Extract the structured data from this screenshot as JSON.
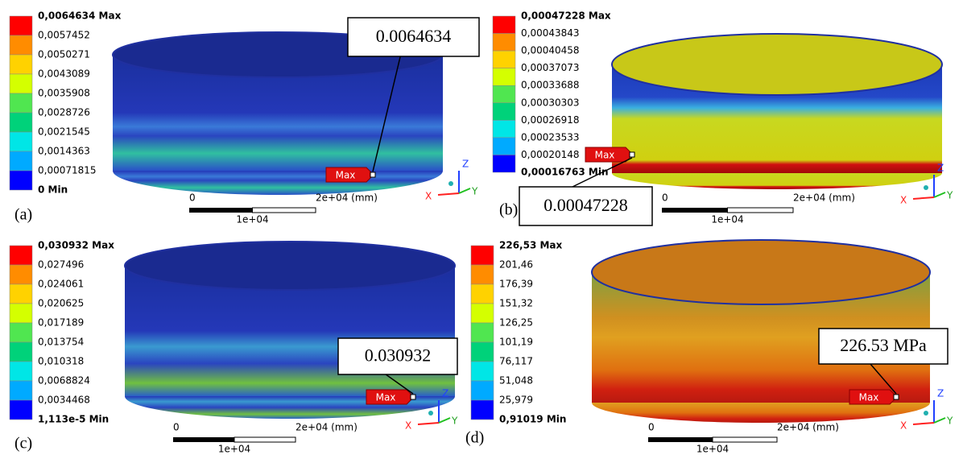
{
  "panels": [
    {
      "label": "(a)",
      "callout": "0.0064634",
      "legend": [
        "0,0064634 Max",
        "0,0057452",
        "0,0050271",
        "0,0043089",
        "0,0035908",
        "0,0028726",
        "0,0021545",
        "0,0014363",
        "0,00071815",
        "0 Min"
      ]
    },
    {
      "label": "(b)",
      "callout": "0.00047228",
      "legend": [
        "0,00047228 Max",
        "0,00043843",
        "0,00040458",
        "0,00037073",
        "0,00033688",
        "0,00030303",
        "0,00026918",
        "0,00023533",
        "0,00020148",
        "0,00016763 Min"
      ]
    },
    {
      "label": "(c)",
      "callout": "0.030932",
      "legend": [
        "0,030932 Max",
        "0,027496",
        "0,024061",
        "0,020625",
        "0,017189",
        "0,013754",
        "0,010318",
        "0,0068824",
        "0,0034468",
        "1,113e-5 Min"
      ]
    },
    {
      "label": "(d)",
      "callout": "226.53 MPa",
      "legend": [
        "226,53 Max",
        "201,46",
        "176,39",
        "151,32",
        "126,25",
        "101,19",
        "76,117",
        "51,048",
        "25,979",
        "0,91019 Min"
      ]
    }
  ],
  "max_tag": "Max",
  "scale": {
    "zero": "0",
    "end": "2e+04 (mm)",
    "mid": "1e+04"
  },
  "triad": {
    "x": "X",
    "y": "Y",
    "z": "Z"
  }
}
